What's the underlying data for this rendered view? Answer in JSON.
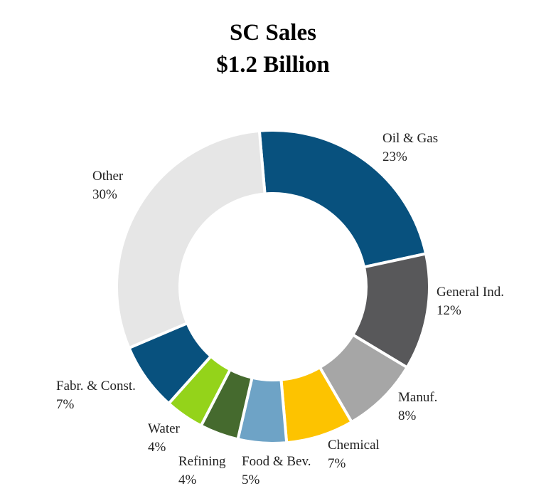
{
  "chart_data": {
    "type": "pie",
    "variant": "donut",
    "title": "SC Sales",
    "subtitle": "$1.2 Billion",
    "slices": [
      {
        "label": "Oil & Gas",
        "pct_label": "23%",
        "value": 23,
        "color": "#08517e"
      },
      {
        "label": "General Ind.",
        "pct_label": "12%",
        "value": 12,
        "color": "#58585a"
      },
      {
        "label": "Manuf.",
        "pct_label": "8%",
        "value": 8,
        "color": "#a6a6a6"
      },
      {
        "label": "Chemical",
        "pct_label": "7%",
        "value": 7,
        "color": "#fdc300"
      },
      {
        "label": "Food & Bev.",
        "pct_label": "5%",
        "value": 5,
        "color": "#6ea3c6"
      },
      {
        "label": "Refining",
        "pct_label": "4%",
        "value": 4,
        "color": "#456a2e"
      },
      {
        "label": "Water",
        "pct_label": "4%",
        "value": 4,
        "color": "#94d31a"
      },
      {
        "label": "Fabr. & Const.",
        "pct_label": "7%",
        "value": 7,
        "color": "#08517e"
      },
      {
        "label": "Other",
        "pct_label": "30%",
        "value": 30,
        "color": "#e6e6e6"
      }
    ]
  }
}
